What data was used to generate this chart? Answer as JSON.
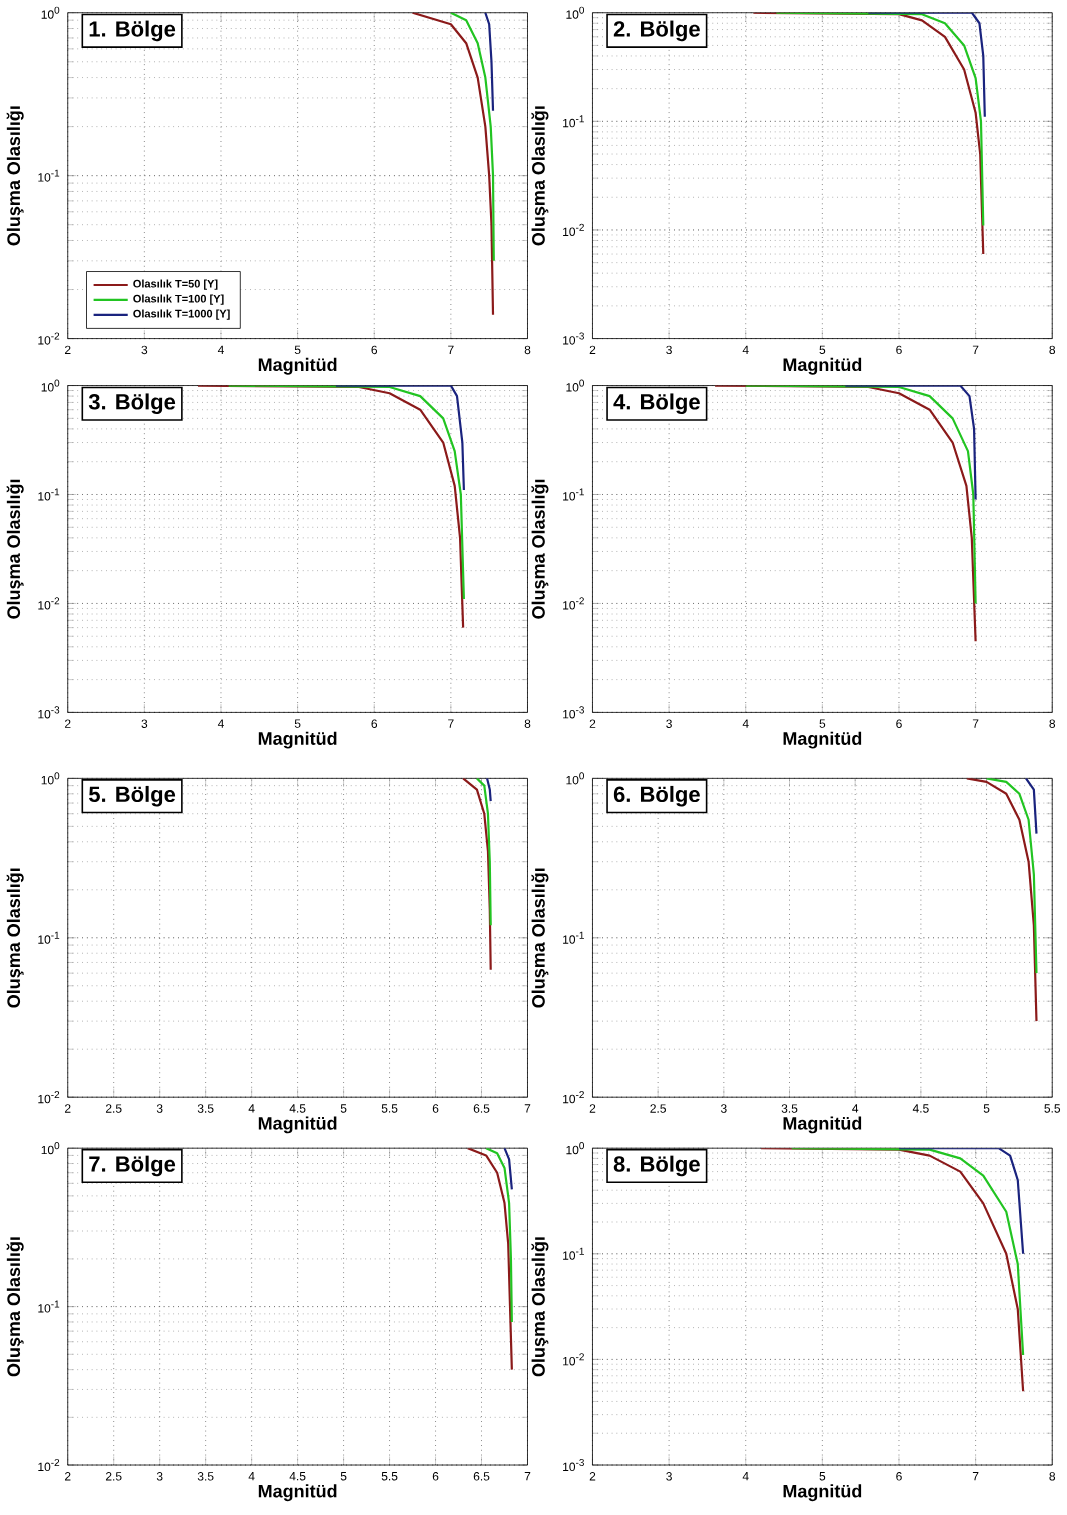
{
  "chart_data": [
    {
      "type": "line",
      "title": "1. Bölge",
      "xlabel": "Magnitüd",
      "ylabel": "Oluşma Olasılığı",
      "log": "y",
      "grid": true,
      "legend": "bottom left",
      "line_style": "solid",
      "xlim": [
        2,
        8
      ],
      "ylim": [
        0.01,
        1
      ],
      "xticks": [
        2,
        3,
        4,
        5,
        6,
        7,
        8
      ],
      "yticks": [
        {
          "value": 0.01,
          "label": "10$^{-2}$"
        },
        {
          "value": 0.1,
          "label": "10$^{-1}$"
        },
        {
          "value": 1,
          "label": "10$^{0}$"
        }
      ],
      "series": [
        {
          "name": "Olasılık T=50 [Y]",
          "color": "#8b1a1a",
          "x": [
            6.5,
            7.0,
            7.2,
            7.35,
            7.45,
            7.5,
            7.53,
            7.55
          ],
          "values": [
            1.0,
            0.85,
            0.65,
            0.4,
            0.2,
            0.1,
            0.05,
            0.014
          ]
        },
        {
          "name": "Olasılık T=100 [Y]",
          "color": "#22c422",
          "x": [
            7.0,
            7.2,
            7.35,
            7.45,
            7.52,
            7.55,
            7.56
          ],
          "values": [
            1.0,
            0.9,
            0.65,
            0.4,
            0.2,
            0.1,
            0.03
          ]
        },
        {
          "name": "Olasılık T=1000 [Y]",
          "color": "#1a237e",
          "x": [
            7.45,
            7.5,
            7.53,
            7.55
          ],
          "values": [
            1.0,
            0.85,
            0.5,
            0.25
          ]
        }
      ]
    },
    {
      "type": "line",
      "title": "2. Bölge",
      "xlabel": "Magnitüd",
      "ylabel": "Oluşma Olasılığı",
      "log": "y",
      "grid": true,
      "line_style": "solid",
      "xlim": [
        2,
        8
      ],
      "ylim": [
        0.001,
        1
      ],
      "xticks": [
        2,
        3,
        4,
        5,
        6,
        7,
        8
      ],
      "yticks": [
        {
          "value": 0.001,
          "label": "10$^{-3}$"
        },
        {
          "value": 0.01,
          "label": "10$^{-2}$"
        },
        {
          "value": 0.1,
          "label": "10$^{-1}$"
        },
        {
          "value": 1,
          "label": "10$^{0}$"
        }
      ],
      "series": [
        {
          "color": "#8b1a1a",
          "x": [
            4.1,
            6.0,
            6.3,
            6.6,
            6.85,
            7.0,
            7.06,
            7.1
          ],
          "values": [
            1.0,
            0.97,
            0.85,
            0.6,
            0.3,
            0.12,
            0.05,
            0.006
          ]
        },
        {
          "color": "#22c422",
          "x": [
            4.4,
            6.3,
            6.6,
            6.85,
            7.0,
            7.07,
            7.1
          ],
          "values": [
            1.0,
            0.97,
            0.8,
            0.5,
            0.25,
            0.1,
            0.011
          ]
        },
        {
          "color": "#1a237e",
          "x": [
            5.6,
            6.95,
            7.05,
            7.1,
            7.12
          ],
          "values": [
            1.0,
            1.0,
            0.8,
            0.4,
            0.11
          ]
        }
      ]
    },
    {
      "type": "line",
      "title": "3. Bölge",
      "xlabel": "Magnitüd",
      "ylabel": "Oluşma Olasılığı",
      "log": "y",
      "grid": true,
      "line_style": "solid",
      "xlim": [
        2,
        8
      ],
      "ylim": [
        0.001,
        1
      ],
      "xticks": [
        2,
        3,
        4,
        5,
        6,
        7,
        8
      ],
      "yticks": [
        {
          "value": 0.001,
          "label": "10$^{-3}$"
        },
        {
          "value": 0.01,
          "label": "10$^{-2}$"
        },
        {
          "value": 0.1,
          "label": "10$^{-1}$"
        },
        {
          "value": 1,
          "label": "10$^{0}$"
        }
      ],
      "series": [
        {
          "color": "#8b1a1a",
          "x": [
            3.7,
            5.8,
            6.2,
            6.6,
            6.9,
            7.05,
            7.12,
            7.16
          ],
          "values": [
            1.0,
            0.97,
            0.85,
            0.6,
            0.3,
            0.12,
            0.04,
            0.006
          ]
        },
        {
          "color": "#22c422",
          "x": [
            4.1,
            6.2,
            6.6,
            6.9,
            7.05,
            7.13,
            7.17
          ],
          "values": [
            1.0,
            0.97,
            0.8,
            0.5,
            0.25,
            0.1,
            0.011
          ]
        },
        {
          "color": "#1a237e",
          "x": [
            5.5,
            7.0,
            7.08,
            7.15,
            7.17
          ],
          "values": [
            1.0,
            1.0,
            0.8,
            0.3,
            0.11
          ]
        }
      ]
    },
    {
      "type": "line",
      "title": "4. Bölge",
      "xlabel": "Magnitüd",
      "ylabel": "Oluşma Olasılığı",
      "log": "y",
      "grid": true,
      "line_style": "solid",
      "xlim": [
        2,
        8
      ],
      "ylim": [
        0.001,
        1
      ],
      "xticks": [
        2,
        3,
        4,
        5,
        6,
        7,
        8
      ],
      "yticks": [
        {
          "value": 0.001,
          "label": "10$^{-3}$"
        },
        {
          "value": 0.01,
          "label": "10$^{-2}$"
        },
        {
          "value": 0.1,
          "label": "10$^{-1}$"
        },
        {
          "value": 1,
          "label": "10$^{0}$"
        }
      ],
      "series": [
        {
          "color": "#8b1a1a",
          "x": [
            3.6,
            5.6,
            6.0,
            6.4,
            6.7,
            6.88,
            6.95,
            7.0
          ],
          "values": [
            1.0,
            0.97,
            0.85,
            0.6,
            0.3,
            0.12,
            0.04,
            0.0045
          ]
        },
        {
          "color": "#22c422",
          "x": [
            4.0,
            6.0,
            6.4,
            6.7,
            6.9,
            6.97,
            7.0
          ],
          "values": [
            1.0,
            0.97,
            0.8,
            0.5,
            0.25,
            0.1,
            0.01
          ]
        },
        {
          "color": "#1a237e",
          "x": [
            5.3,
            6.8,
            6.92,
            6.98,
            7.0
          ],
          "values": [
            1.0,
            1.0,
            0.8,
            0.4,
            0.09
          ]
        }
      ]
    },
    {
      "type": "line",
      "title": "5. Bölge",
      "xlabel": "Magnitüd",
      "ylabel": "Oluşma Olasılığı",
      "log": "y",
      "grid": true,
      "line_style": "solid",
      "xlim": [
        2,
        7
      ],
      "ylim": [
        0.01,
        1
      ],
      "xticks": [
        2,
        2.5,
        3,
        3.5,
        4,
        4.5,
        5,
        5.5,
        6,
        6.5,
        7
      ],
      "yticks": [
        {
          "value": 0.01,
          "label": "10$^{-2}$"
        },
        {
          "value": 0.1,
          "label": "10$^{-1}$"
        },
        {
          "value": 1,
          "label": "10$^{0}$"
        }
      ],
      "series": [
        {
          "color": "#8b1a1a",
          "x": [
            6.3,
            6.45,
            6.53,
            6.57,
            6.59,
            6.6
          ],
          "values": [
            1.0,
            0.85,
            0.6,
            0.35,
            0.15,
            0.063
          ]
        },
        {
          "color": "#22c422",
          "x": [
            6.45,
            6.53,
            6.57,
            6.59,
            6.6
          ],
          "values": [
            1.0,
            0.9,
            0.6,
            0.3,
            0.12
          ]
        },
        {
          "color": "#1a237e",
          "x": [
            6.56,
            6.59,
            6.6
          ],
          "values": [
            1.0,
            0.85,
            0.72
          ]
        }
      ]
    },
    {
      "type": "line",
      "title": "6. Bölge",
      "xlabel": "Magnitüd",
      "ylabel": "Oluşma Olasılığı",
      "log": "y",
      "grid": true,
      "line_style": "solid",
      "xlim": [
        2,
        5.5
      ],
      "ylim": [
        0.01,
        1
      ],
      "xticks": [
        2,
        2.5,
        3,
        3.5,
        4,
        4.5,
        5,
        5.5
      ],
      "yticks": [
        {
          "value": 0.01,
          "label": "10$^{-2}$"
        },
        {
          "value": 0.1,
          "label": "10$^{-1}$"
        },
        {
          "value": 1,
          "label": "10$^{0}$"
        }
      ],
      "series": [
        {
          "color": "#8b1a1a",
          "x": [
            4.85,
            5.0,
            5.15,
            5.25,
            5.32,
            5.36,
            5.38
          ],
          "values": [
            1.0,
            0.95,
            0.8,
            0.55,
            0.3,
            0.12,
            0.03
          ]
        },
        {
          "color": "#22c422",
          "x": [
            5.0,
            5.15,
            5.25,
            5.32,
            5.36,
            5.38
          ],
          "values": [
            1.0,
            0.95,
            0.8,
            0.55,
            0.25,
            0.06
          ]
        },
        {
          "color": "#1a237e",
          "x": [
            5.3,
            5.36,
            5.38
          ],
          "values": [
            1.0,
            0.85,
            0.45
          ]
        }
      ]
    },
    {
      "type": "line",
      "title": "7. Bölge",
      "xlabel": "Magnitüd",
      "ylabel": "Oluşma Olasılığı",
      "log": "y",
      "grid": true,
      "line_style": "solid",
      "xlim": [
        2,
        7
      ],
      "ylim": [
        0.01,
        1
      ],
      "xticks": [
        2,
        2.5,
        3,
        3.5,
        4,
        4.5,
        5,
        5.5,
        6,
        6.5,
        7
      ],
      "yticks": [
        {
          "value": 0.01,
          "label": "10$^{-2}$"
        },
        {
          "value": 0.1,
          "label": "10$^{-1}$"
        },
        {
          "value": 1,
          "label": "10$^{0}$"
        }
      ],
      "series": [
        {
          "color": "#8b1a1a",
          "x": [
            6.35,
            6.55,
            6.67,
            6.75,
            6.79,
            6.81,
            6.83
          ],
          "values": [
            1.0,
            0.9,
            0.7,
            0.45,
            0.25,
            0.1,
            0.04
          ]
        },
        {
          "color": "#22c422",
          "x": [
            6.55,
            6.67,
            6.75,
            6.8,
            6.82,
            6.83
          ],
          "values": [
            1.0,
            0.93,
            0.75,
            0.45,
            0.2,
            0.08
          ]
        },
        {
          "color": "#1a237e",
          "x": [
            6.75,
            6.8,
            6.83
          ],
          "values": [
            1.0,
            0.85,
            0.55
          ]
        }
      ]
    },
    {
      "type": "line",
      "title": "8. Bölge",
      "xlabel": "Magnitüd",
      "ylabel": "Oluşma Olasılığı",
      "log": "y",
      "grid": true,
      "line_style": "solid",
      "xlim": [
        2,
        8
      ],
      "ylim": [
        0.001,
        1
      ],
      "xticks": [
        2,
        3,
        4,
        5,
        6,
        7,
        8
      ],
      "yticks": [
        {
          "value": 0.001,
          "label": "10$^{-3}$"
        },
        {
          "value": 0.01,
          "label": "10$^{-2}$"
        },
        {
          "value": 0.1,
          "label": "10$^{-1}$"
        },
        {
          "value": 1,
          "label": "10$^{0}$"
        }
      ],
      "series": [
        {
          "color": "#8b1a1a",
          "x": [
            4.2,
            6.0,
            6.4,
            6.8,
            7.1,
            7.4,
            7.55,
            7.62
          ],
          "values": [
            1.0,
            0.97,
            0.85,
            0.6,
            0.3,
            0.1,
            0.03,
            0.005
          ]
        },
        {
          "color": "#22c422",
          "x": [
            4.6,
            6.4,
            6.8,
            7.1,
            7.4,
            7.55,
            7.62
          ],
          "values": [
            1.0,
            0.97,
            0.8,
            0.55,
            0.25,
            0.08,
            0.011
          ]
        },
        {
          "color": "#1a237e",
          "x": [
            6.0,
            7.3,
            7.45,
            7.55,
            7.62
          ],
          "values": [
            1.0,
            1.0,
            0.85,
            0.5,
            0.1
          ]
        }
      ]
    }
  ]
}
